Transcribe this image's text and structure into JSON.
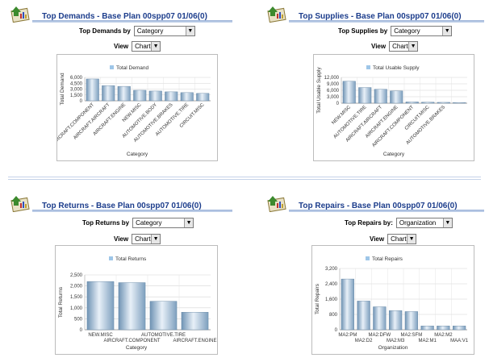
{
  "panels": [
    {
      "id": "demands",
      "title": "Top Demands - Base Plan 00spp07 01/06(0)",
      "by_label": "Top Demands by",
      "by_value": "Category",
      "view_label": "View",
      "view_value": "Chart",
      "chart_data": {
        "type": "bar",
        "series": [
          {
            "name": "Total Demand",
            "values": [
              5600,
              3900,
              3700,
              2700,
              2500,
              2300,
              2100,
              1900
            ]
          }
        ],
        "categories": [
          "AIRCRAFT.COMPONENT",
          "AIRCRAFT.AIRCRAFT",
          "AIRCRAFT.ENGINE",
          "NEW.MISC",
          "AUTOMOTIVE.BODY",
          "AUTOMOTIVE.BRAKES",
          "AUTOMOTIVE.TIRE",
          "CIRCUIT.MISC"
        ],
        "ylabel": "Total Demand",
        "xlabel": "Category",
        "ylim": [
          0,
          6000
        ],
        "yticks": [
          "0",
          "1,500",
          "3,000",
          "4,500",
          "6,000"
        ]
      }
    },
    {
      "id": "supplies",
      "title": "Top Supplies - Base Plan 00spp07 01/06(0)",
      "by_label": "Top Supplies by",
      "by_value": "Category",
      "view_label": "View",
      "view_value": "Chart",
      "chart_data": {
        "type": "bar",
        "series": [
          {
            "name": "Total Usable Supply",
            "values": [
              10200,
              7300,
              6500,
              5700,
              600,
              500,
              400,
              300
            ]
          }
        ],
        "categories": [
          "NEW.MISC",
          "AUTOMOTIVE.TIRE",
          "AIRCRAFT.AIRCRAFT",
          "AIRCRAFT.ENGINE",
          "AIRCRAFT.COMPONENT",
          "CIRCUIT.MISC",
          "AUTOMOTIVE.BRAKES",
          ""
        ],
        "ylabel": "Total Usable Supply",
        "xlabel": "Category",
        "ylim": [
          0,
          12000
        ],
        "yticks": [
          "0",
          "3,000",
          "6,000",
          "9,000",
          "12,000"
        ]
      }
    },
    {
      "id": "returns",
      "title": "Top Returns - Base Plan 00spp07 01/06(0)",
      "by_label": "Top Returns by",
      "by_value": "Category",
      "view_label": "View",
      "view_value": "Chart",
      "chart_data": {
        "type": "bar",
        "series": [
          {
            "name": "Total Returns",
            "values": [
              2200,
              2150,
              1300,
              800
            ]
          }
        ],
        "categories": [
          "NEW.MISC",
          "AIRCRAFT.COMPONENT",
          "AUTOMOTIVE.TIRE",
          "AIRCRAFT.ENGINE"
        ],
        "ylabel": "Total Returns",
        "xlabel": "Category",
        "ylim": [
          0,
          2500
        ],
        "yticks": [
          "0",
          "500",
          "1,000",
          "1,500",
          "2,000",
          "2,500"
        ]
      }
    },
    {
      "id": "repairs",
      "title": "Top Repairs - Base Plan 00spp07 01/06(0)",
      "by_label": "Top Repairs by:",
      "by_value": "Organization",
      "view_label": "View",
      "view_value": "Chart",
      "chart_data": {
        "type": "bar",
        "series": [
          {
            "name": "Total Repairs",
            "values": [
              2650,
              1500,
              1200,
              1000,
              950,
              200,
              200,
              200
            ]
          }
        ],
        "categories": [
          "MA2:PM",
          "MA2:D2",
          "MA2:DFW",
          "MA2:M3",
          "MA2:SFM",
          "MA2:M1",
          "MA2:M2",
          "MAA:V1"
        ],
        "ylabel": "Total Repairs",
        "xlabel": "Organization",
        "ylim": [
          0,
          3200
        ],
        "yticks": [
          "0",
          "800",
          "1,600",
          "2,400",
          "3,200"
        ]
      }
    }
  ]
}
